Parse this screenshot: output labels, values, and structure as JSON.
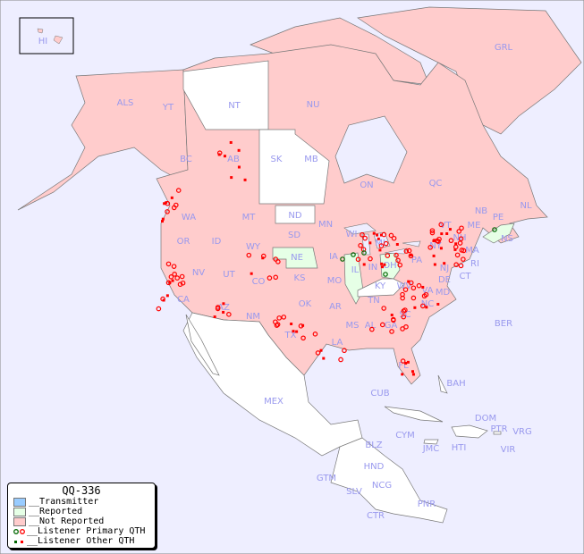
{
  "legend": {
    "title": "QQ-336",
    "items": [
      {
        "label": "__Transmitter",
        "color": "#99ccff"
      },
      {
        "label": "__Reported",
        "color": "#e6ffe6"
      },
      {
        "label": "__Not Reported",
        "color": "#ffcccc"
      },
      {
        "label": "__Listener Primary QTH"
      },
      {
        "label": "__Listener Other QTH"
      }
    ]
  },
  "colors": {
    "water": "#eeeeff",
    "not_reported": "#ffcccc",
    "reported": "#e6ffe6",
    "no_data": "#ffffff",
    "listener": "#ff0000",
    "listener_primary": "#006600",
    "label": "#9999ee"
  },
  "regions": [
    "HI",
    "ALS",
    "YT",
    "NT",
    "NU",
    "GRL",
    "BC",
    "AB",
    "SK",
    "MB",
    "ON",
    "QC",
    "NL",
    "PE",
    "NB",
    "NS",
    "WA",
    "OR",
    "ID",
    "MT",
    "WY",
    "ND",
    "SD",
    "MN",
    "WI",
    "MI",
    "NE",
    "IA",
    "IL",
    "IN",
    "OH",
    "PA",
    "NY",
    "VT",
    "NH",
    "ME",
    "MA",
    "RI",
    "CT",
    "NJ",
    "DE",
    "MD",
    "NV",
    "UT",
    "CO",
    "KS",
    "MO",
    "KY",
    "WV",
    "VA",
    "CA",
    "AZ",
    "NM",
    "OK",
    "AR",
    "TN",
    "NC",
    "SC",
    "TX",
    "LA",
    "MS",
    "AL",
    "GA",
    "FL",
    "MEX",
    "CUB",
    "BAH",
    "BER",
    "DOM",
    "PTR",
    "VRG",
    "CYM",
    "JMC",
    "HTI",
    "VIR",
    "BLZ",
    "HND",
    "GTM",
    "SLV",
    "NCG",
    "CTR",
    "PNR"
  ]
}
